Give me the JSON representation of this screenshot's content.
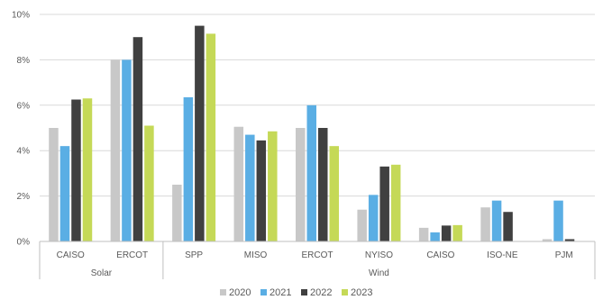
{
  "chart_data": {
    "type": "bar",
    "title": "",
    "xlabel": "",
    "ylabel": "",
    "ylim": [
      0,
      10
    ],
    "y_ticks": [
      "0%",
      "2%",
      "4%",
      "6%",
      "8%",
      "10%"
    ],
    "y_tick_values": [
      0,
      2,
      4,
      6,
      8,
      10
    ],
    "grid": true,
    "legend_position": "bottom",
    "categories": [
      "CAISO",
      "ERCOT",
      "SPP",
      "MISO",
      "ERCOT",
      "NYISO",
      "CAISO",
      "ISO-NE",
      "PJM"
    ],
    "groups": [
      {
        "label": "Solar",
        "start": 0,
        "count": 2
      },
      {
        "label": "Wind",
        "start": 2,
        "count": 7
      }
    ],
    "series": [
      {
        "name": "2020",
        "color": "#c8c8c8",
        "values": [
          5.0,
          8.0,
          2.5,
          5.05,
          5.0,
          1.4,
          0.6,
          1.5,
          0.1
        ]
      },
      {
        "name": "2021",
        "color": "#5aaee4",
        "values": [
          4.2,
          8.0,
          6.35,
          4.7,
          6.0,
          2.05,
          0.4,
          1.8,
          1.8
        ]
      },
      {
        "name": "2022",
        "color": "#404040",
        "values": [
          6.25,
          9.0,
          9.5,
          4.45,
          5.0,
          3.3,
          0.7,
          1.3,
          0.1
        ]
      },
      {
        "name": "2023",
        "color": "#c5d957",
        "values": [
          6.3,
          5.1,
          9.15,
          4.85,
          4.2,
          3.38,
          0.72,
          0.0,
          0.0
        ]
      }
    ]
  }
}
